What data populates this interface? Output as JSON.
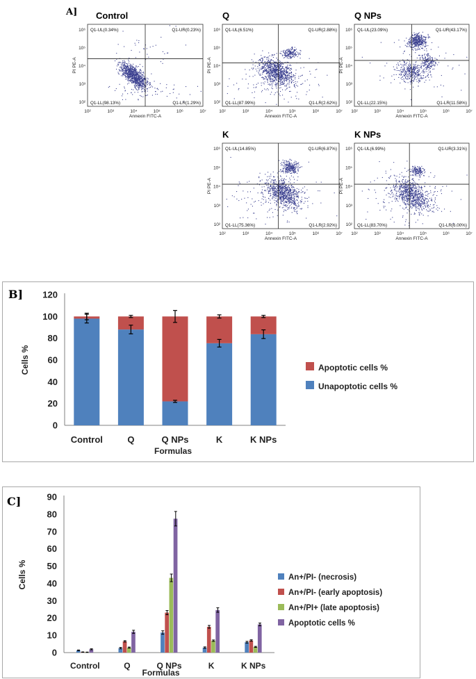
{
  "panel_a": {
    "letter": "A]",
    "plots": [
      {
        "title": "Control",
        "ul": "Q1-UL(0.34%)",
        "ur": "Q1-UR(0.23%)",
        "ll": "Q1-LL(98.13%)",
        "lr": "Q1-LR(1.29%)"
      },
      {
        "title": "Q",
        "ul": "Q1-UL(6.51%)",
        "ur": "Q1-UR(2.88%)",
        "ll": "Q1-LL(87.99%)",
        "lr": "Q1-LR(2.62%)"
      },
      {
        "title": "Q NPs",
        "ul": "Q1-UL(23.09%)",
        "ur": "Q1-UR(43.17%)",
        "ll": "Q1-LL(22.15%)",
        "lr": "Q1-LR(11.58%)"
      },
      {
        "title": "K",
        "ul": "Q1-UL(14.85%)",
        "ur": "Q1-UR(6.87%)",
        "ll": "Q1-LL(75.36%)",
        "lr": "Q1-LR(2.92%)"
      },
      {
        "title": "K NPs",
        "ul": "Q1-UL(6.99%)",
        "ur": "Q1-UR(3.31%)",
        "ll": "Q1-LL(83.70%)",
        "lr": "Q1-LR(6.00%)"
      }
    ],
    "x_axis_label": "Annexin FITC-A",
    "y_axis_label": "PI PE-A",
    "x_ticks": [
      "10²",
      "10³",
      "10⁴",
      "10⁵",
      "10⁶",
      "10⁷"
    ],
    "y_ticks": [
      "10²",
      "10³",
      "10⁴",
      "10⁵",
      "10⁶"
    ],
    "dot_color": "#3a3f8f"
  },
  "chart_data": [
    {
      "letter": "B]",
      "type": "bar",
      "stacked": true,
      "categories": [
        "Control",
        "Q",
        "Q NPs",
        "K",
        "K NPs"
      ],
      "series": [
        {
          "name": "Unapoptotic cells %",
          "color": "#4f81bd",
          "values": [
            98,
            88,
            22,
            75.4,
            83.7
          ],
          "errors": [
            4,
            4,
            1,
            3.5,
            4
          ]
        },
        {
          "name": "Apoptotic cells %",
          "color": "#c0504d",
          "values": [
            2,
            12,
            78,
            24.6,
            16.3
          ],
          "errors": [
            3,
            1,
            5.5,
            1.5,
            1
          ]
        }
      ],
      "legend_order": [
        "Apoptotic cells %",
        "Unapoptotic cells %"
      ],
      "xlabel": "Formulas",
      "ylabel": "Cells %",
      "ylim": [
        0,
        120
      ],
      "yticks": [
        0,
        20,
        40,
        60,
        80,
        100,
        120
      ],
      "legend_position": "right"
    },
    {
      "letter": "C]",
      "type": "bar",
      "stacked": false,
      "categories": [
        "Control",
        "Q",
        "Q NPs",
        "K",
        "K NPs"
      ],
      "series": [
        {
          "name": "An+/PI- (necrosis)",
          "color": "#4f81bd",
          "values": [
            1.3,
            2.6,
            11.6,
            2.9,
            6.0
          ],
          "errors": [
            0.2,
            0.4,
            1.0,
            0.4,
            0.5
          ]
        },
        {
          "name": "An+/PI- (early apoptosis)",
          "color": "#c0504d",
          "values": [
            0.3,
            6.5,
            23.1,
            14.9,
            7.0
          ],
          "errors": [
            0.1,
            0.4,
            1.2,
            0.8,
            0.4
          ]
        },
        {
          "name": "An+/PI+ (late apoptosis)",
          "color": "#9bbb59",
          "values": [
            0.2,
            2.9,
            43.2,
            6.9,
            3.3
          ],
          "errors": [
            0.1,
            0.3,
            2.2,
            0.4,
            0.3
          ]
        },
        {
          "name": "Apoptotic cells %",
          "color": "#8064a2",
          "values": [
            1.9,
            12.0,
            77.4,
            24.6,
            16.3
          ],
          "errors": [
            0.3,
            0.9,
            4.2,
            1.3,
            0.8
          ]
        }
      ],
      "legend_order": [
        "An+/PI- (necrosis)",
        "An+/PI- (early apoptosis)",
        "An+/PI+ (late apoptosis)",
        "Apoptotic cells %"
      ],
      "xlabel": "Formulas",
      "ylabel": "Cells %",
      "ylim": [
        0,
        90
      ],
      "yticks": [
        0,
        10,
        20,
        30,
        40,
        50,
        60,
        70,
        80,
        90
      ],
      "legend_position": "right"
    }
  ]
}
